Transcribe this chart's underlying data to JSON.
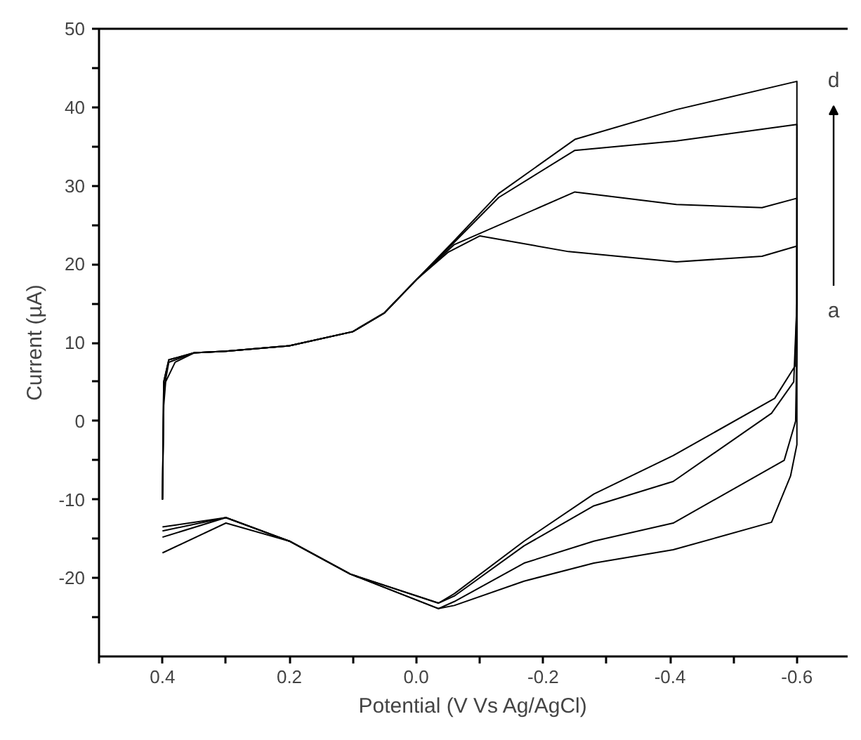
{
  "chart_data": {
    "type": "line",
    "xlabel": "Potential (V Vs Ag/AgCl)",
    "ylabel": "Current (µA)",
    "xlim": [
      0.5,
      -0.68
    ],
    "ylim": [
      -30,
      50
    ],
    "xticks": [
      {
        "value": 0.5,
        "label": null
      },
      0.4,
      {
        "value": 0.3,
        "label": null
      },
      0.2,
      {
        "value": 0.1,
        "label": null
      },
      {
        "value": 0.0,
        "label": "0.0"
      },
      {
        "value": -0.1,
        "label": null
      },
      -0.2,
      {
        "value": -0.3,
        "label": null
      },
      -0.4,
      {
        "value": -0.5,
        "label": null
      },
      -0.6
    ],
    "yticks": [
      {
        "value": -25,
        "label": null
      },
      -20,
      {
        "value": -15,
        "label": null
      },
      -10,
      {
        "value": -5,
        "label": null
      },
      0,
      {
        "value": 5,
        "label": null
      },
      10,
      {
        "value": 15,
        "label": null
      },
      20,
      {
        "value": 25,
        "label": null
      },
      30,
      {
        "value": 35,
        "label": null
      },
      40,
      {
        "value": 45,
        "label": null
      },
      50
    ],
    "grid": false,
    "marker": "none",
    "line_style": "solid",
    "annotations": [
      "d",
      "a"
    ],
    "series": [
      {
        "color": "#000000",
        "x": [
          0.4,
          0.398,
          0.395,
          0.38,
          0.35,
          0.3,
          0.2,
          0.1,
          0.05,
          0.0,
          -0.05,
          -0.1,
          -0.24,
          -0.41,
          -0.545,
          -0.6,
          -0.6,
          -0.6,
          -0.59,
          -0.56,
          -0.405,
          -0.28,
          -0.17,
          -0.06,
          -0.035,
          0.104,
          0.2,
          0.3,
          0.4
        ],
        "values": [
          -10,
          2,
          5,
          7.5,
          8.7,
          8.9,
          9.6,
          11.4,
          13.8,
          18,
          21.5,
          23.6,
          21.6,
          20.3,
          21.0,
          22.3,
          5,
          -3,
          -7,
          -12.9,
          -16.4,
          -18.1,
          -20.4,
          -23.5,
          -23.9,
          -19.5,
          -15.3,
          -13,
          -16.8
        ]
      },
      {
        "color": "#000000",
        "x": [
          0.4,
          0.398,
          0.39,
          0.35,
          0.3,
          0.2,
          0.1,
          0.05,
          0.0,
          -0.06,
          -0.25,
          -0.41,
          -0.545,
          -0.6,
          -0.6,
          -0.598,
          -0.58,
          -0.405,
          -0.28,
          -0.17,
          -0.06,
          -0.035,
          0.104,
          0.2,
          0.3,
          0.4
        ],
        "values": [
          -10,
          4,
          7.5,
          8.7,
          8.9,
          9.6,
          11.4,
          13.8,
          18,
          22.5,
          29.2,
          27.6,
          27.2,
          28.4,
          10,
          0,
          -5,
          -13,
          -15.3,
          -18.1,
          -23,
          -23.9,
          -19.5,
          -15.3,
          -12.3,
          -14.8
        ]
      },
      {
        "color": "#000000",
        "x": [
          0.4,
          0.398,
          0.39,
          0.35,
          0.3,
          0.2,
          0.1,
          0.05,
          0.0,
          -0.06,
          -0.13,
          -0.25,
          -0.41,
          -0.6,
          -0.6,
          -0.595,
          -0.56,
          -0.405,
          -0.28,
          -0.17,
          -0.06,
          -0.035,
          0.104,
          0.2,
          0.3,
          0.4
        ],
        "values": [
          -10,
          5,
          7.8,
          8.7,
          8.9,
          9.6,
          11.4,
          13.8,
          18,
          22.8,
          28.5,
          34.5,
          35.7,
          37.8,
          15,
          5,
          1,
          -7.7,
          -10.8,
          -15.9,
          -22.3,
          -23.2,
          -19.5,
          -15.3,
          -12.3,
          -14
        ]
      },
      {
        "color": "#000000",
        "x": [
          0.4,
          0.398,
          0.39,
          0.35,
          0.3,
          0.2,
          0.1,
          0.05,
          0.0,
          -0.06,
          -0.13,
          -0.25,
          -0.41,
          -0.6,
          -0.6,
          -0.597,
          -0.565,
          -0.405,
          -0.28,
          -0.17,
          -0.06,
          -0.035,
          0.104,
          0.2,
          0.3,
          0.4
        ],
        "values": [
          -10,
          5,
          7.8,
          8.7,
          8.9,
          9.6,
          11.4,
          13.8,
          18,
          23,
          29,
          35.9,
          39.7,
          43.3,
          15,
          7,
          2.9,
          -4.4,
          -9.3,
          -15.3,
          -22,
          -23.2,
          -19.5,
          -15.3,
          -12.3,
          -13.5
        ]
      }
    ]
  }
}
